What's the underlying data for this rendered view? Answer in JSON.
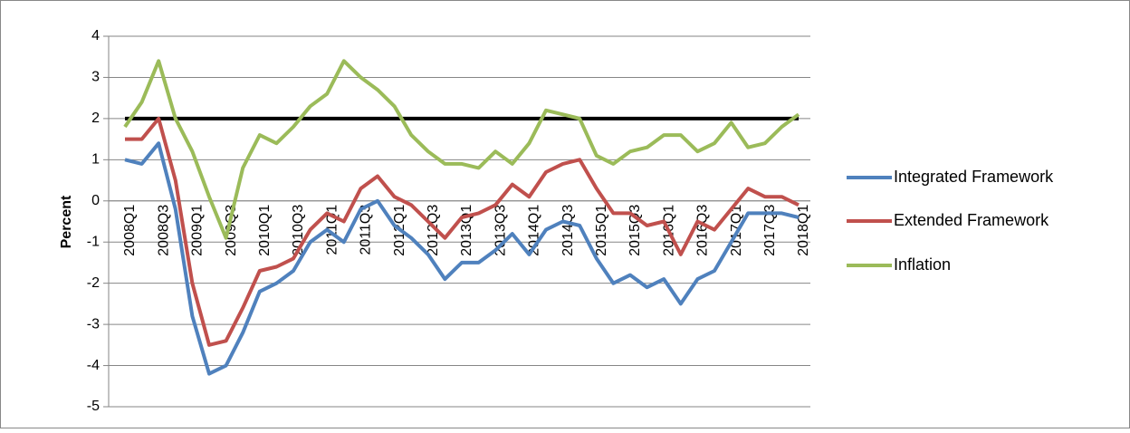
{
  "chart_data": {
    "type": "line",
    "y_label": "Percent",
    "categories": [
      "2008Q1",
      null,
      "2008Q3",
      null,
      "2009Q1",
      null,
      "2009Q3",
      null,
      "2010Q1",
      null,
      "2010Q3",
      null,
      "2011Q1",
      null,
      "2011Q3",
      null,
      "2012Q1",
      null,
      "2012Q3",
      null,
      "2013Q1",
      null,
      "2013Q3",
      null,
      "2014Q1",
      null,
      "2014Q3",
      null,
      "2015Q1",
      null,
      "2015Q3",
      null,
      "2016Q1",
      null,
      "2016Q3",
      null,
      "2017Q1",
      null,
      "2017Q3",
      null,
      "2018Q1"
    ],
    "series": [
      {
        "name": "Integrated Framework",
        "color": "#4f81bd",
        "values": [
          1.0,
          0.9,
          1.4,
          -0.2,
          -2.8,
          -4.2,
          -4.0,
          -3.2,
          -2.2,
          -2.0,
          -1.7,
          -1.0,
          -0.7,
          -1.0,
          -0.2,
          0.0,
          -0.6,
          -0.9,
          -1.3,
          -1.9,
          -1.5,
          -1.5,
          -1.2,
          -0.8,
          -1.3,
          -0.7,
          -0.5,
          -0.6,
          -1.4,
          -2.0,
          -1.8,
          -2.1,
          -1.9,
          -2.5,
          -1.9,
          -1.7,
          -1.0,
          -0.3,
          -0.3,
          -0.3,
          -0.4
        ]
      },
      {
        "name": "Extended Framework",
        "color": "#c0504d",
        "values": [
          1.5,
          1.5,
          2.0,
          0.5,
          -2.0,
          -3.5,
          -3.4,
          -2.6,
          -1.7,
          -1.6,
          -1.4,
          -0.7,
          -0.3,
          -0.5,
          0.3,
          0.6,
          0.1,
          -0.1,
          -0.5,
          -0.9,
          -0.4,
          -0.3,
          -0.1,
          0.4,
          0.1,
          0.7,
          0.9,
          1.0,
          0.3,
          -0.3,
          -0.3,
          -0.6,
          -0.5,
          -1.3,
          -0.5,
          -0.7,
          -0.2,
          0.3,
          0.1,
          0.1,
          -0.1
        ]
      },
      {
        "name": "Inflation",
        "color": "#9bbb59",
        "values": [
          1.8,
          2.4,
          3.4,
          2.0,
          1.2,
          0.1,
          -0.9,
          0.8,
          1.6,
          1.4,
          1.8,
          2.3,
          2.6,
          3.4,
          3.0,
          2.7,
          2.3,
          1.6,
          1.2,
          0.9,
          0.9,
          0.8,
          1.2,
          0.9,
          1.4,
          2.2,
          2.1,
          2.0,
          1.1,
          0.9,
          1.2,
          1.3,
          1.6,
          1.6,
          1.2,
          1.4,
          1.9,
          1.3,
          1.4,
          1.8,
          2.1
        ]
      }
    ],
    "reference_line": {
      "value": 2,
      "color": "#000000"
    },
    "ylim": [
      -5,
      4
    ],
    "yticks": [
      -5,
      -4,
      -3,
      -2,
      -1,
      0,
      1,
      2,
      3,
      4
    ],
    "grid": true,
    "legend": "right"
  }
}
